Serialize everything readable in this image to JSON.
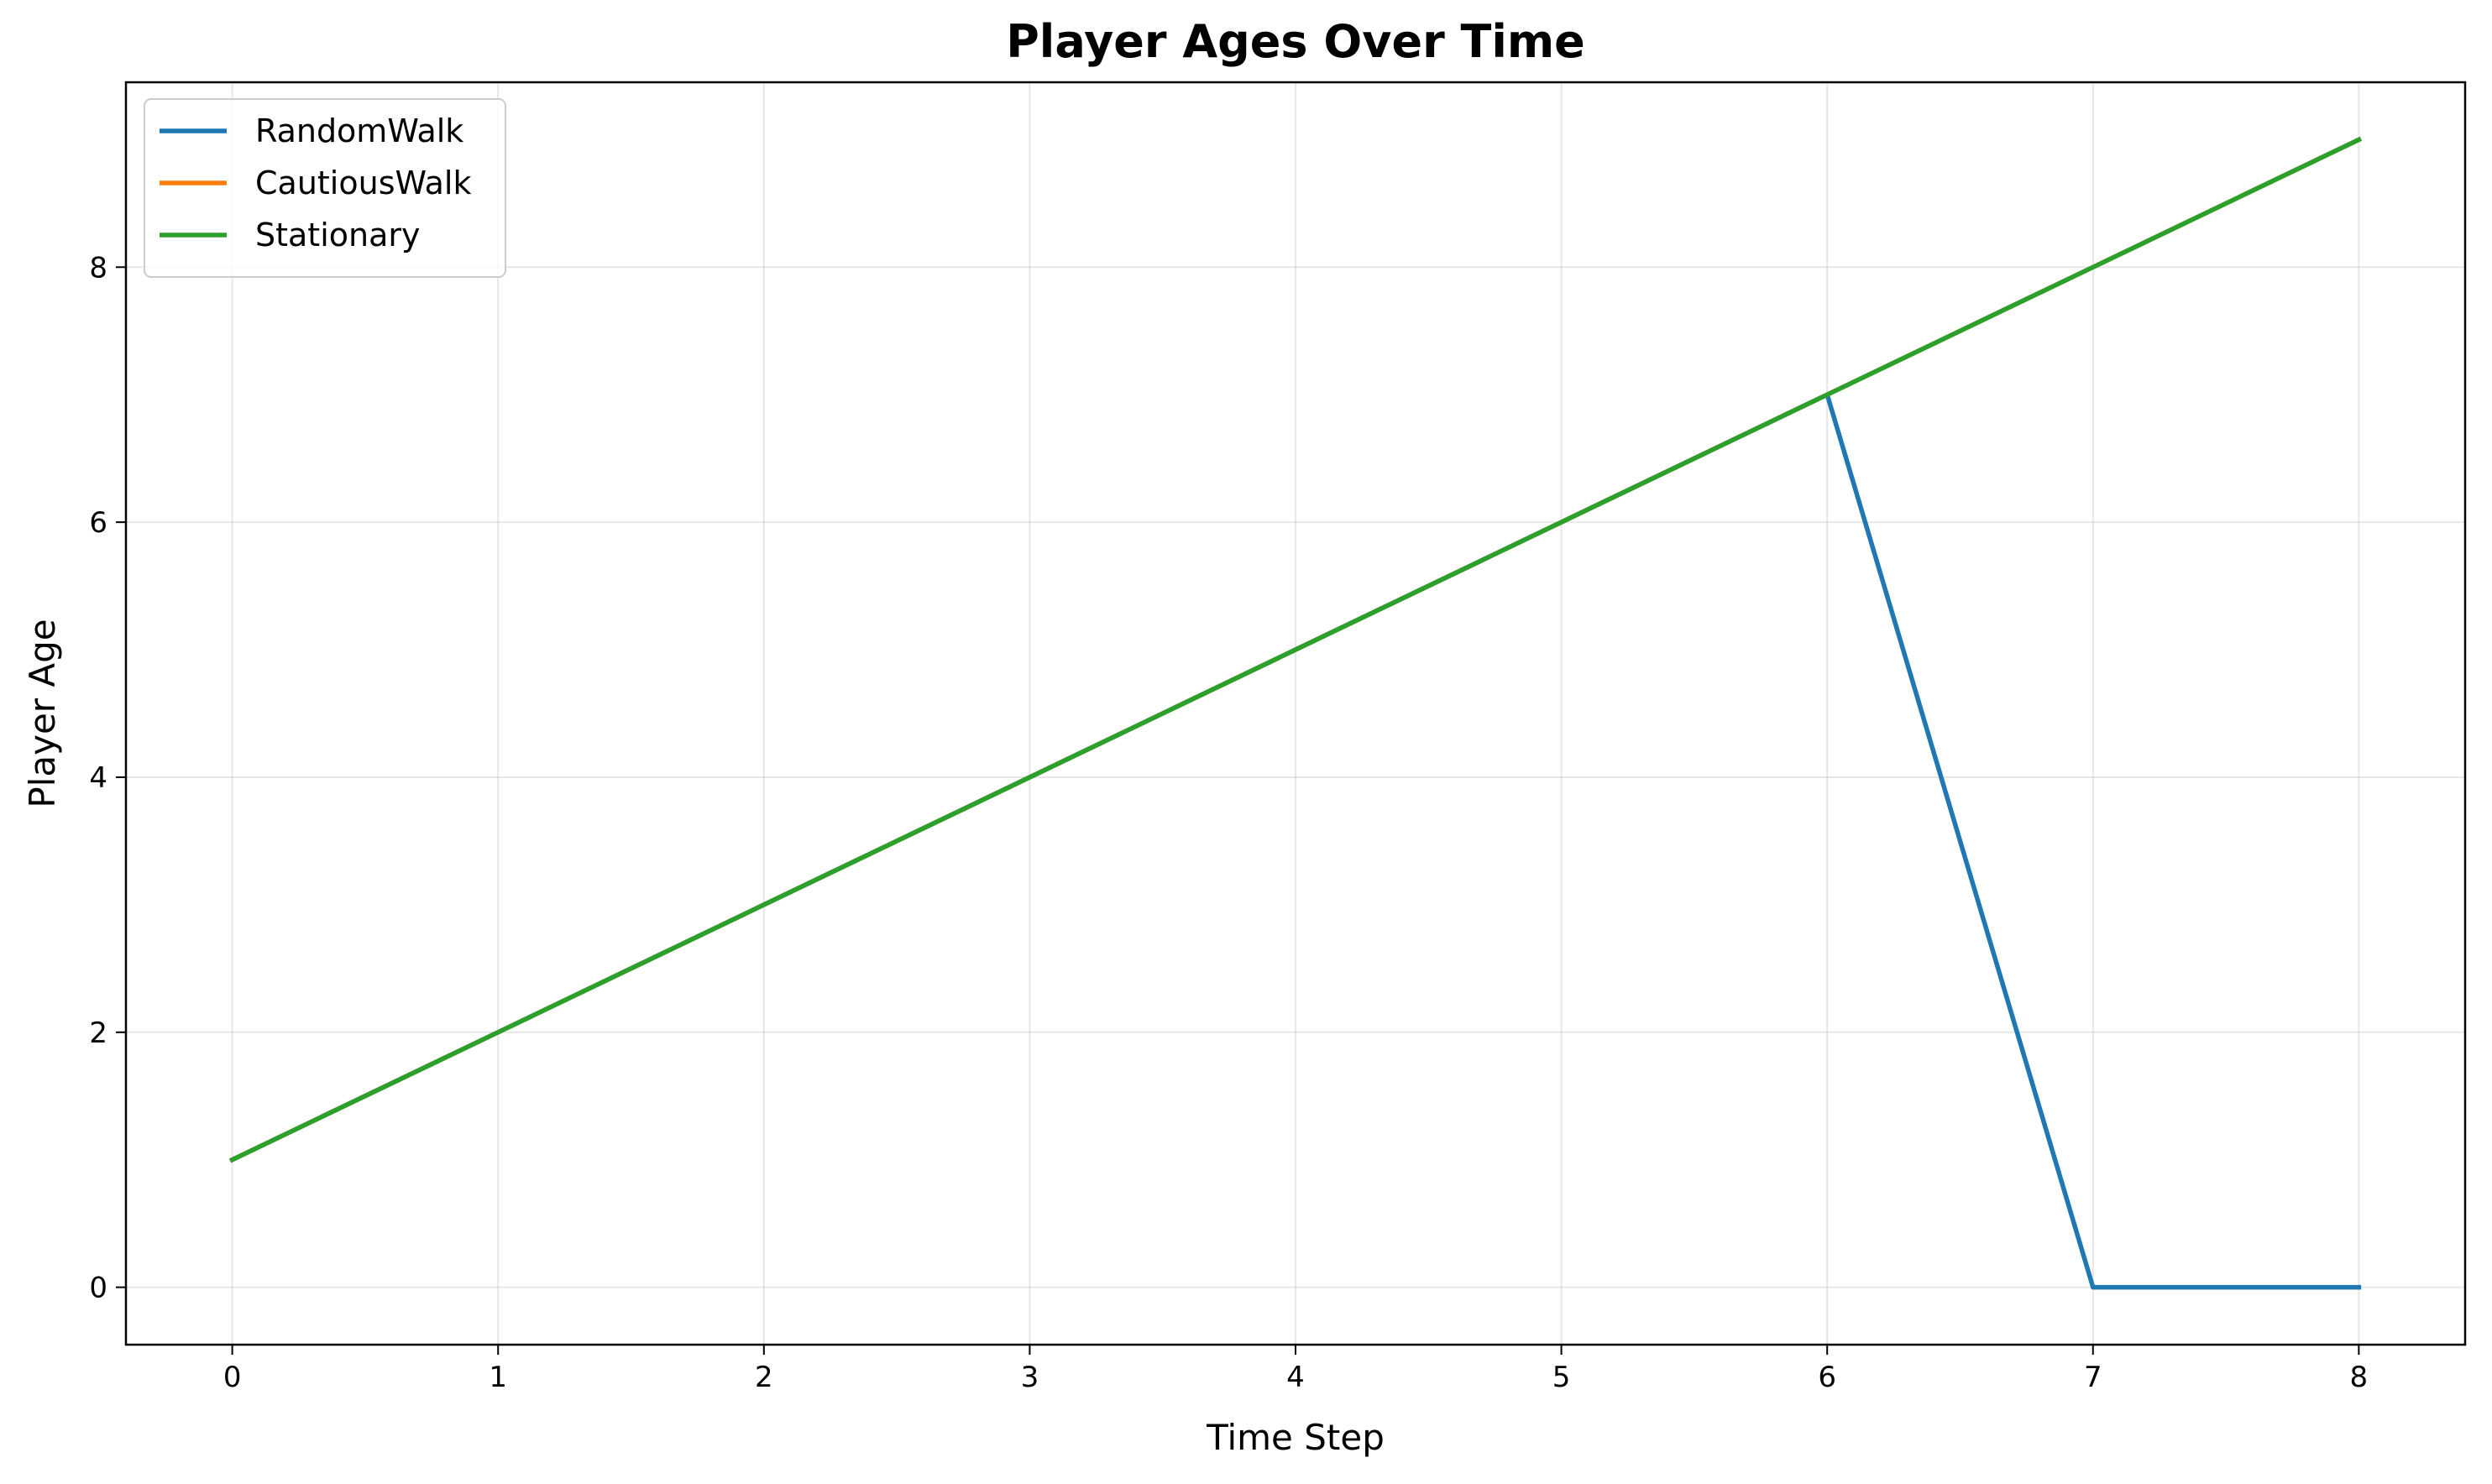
{
  "chart_data": {
    "type": "line",
    "title": "Player Ages Over Time",
    "xlabel": "Time Step",
    "ylabel": "Player Age",
    "xlim": [
      -0.4,
      8.4
    ],
    "ylim": [
      -0.45,
      9.45
    ],
    "xticks": [
      0,
      1,
      2,
      3,
      4,
      5,
      6,
      7,
      8
    ],
    "yticks": [
      0,
      2,
      4,
      6,
      8
    ],
    "grid": true,
    "legend_position": "top-left",
    "x": [
      0,
      1,
      2,
      3,
      4,
      5,
      6,
      7,
      8
    ],
    "series": [
      {
        "name": "RandomWalk",
        "color": "#1f77b4",
        "values": [
          1,
          2,
          3,
          4,
          5,
          6,
          7,
          0,
          0
        ]
      },
      {
        "name": "CautiousWalk",
        "color": "#ff7f0e",
        "values": [
          1,
          2,
          3,
          4,
          5,
          6,
          7,
          8,
          9
        ]
      },
      {
        "name": "Stationary",
        "color": "#2ca02c",
        "values": [
          1,
          2,
          3,
          4,
          5,
          6,
          7,
          8,
          9
        ]
      }
    ]
  }
}
